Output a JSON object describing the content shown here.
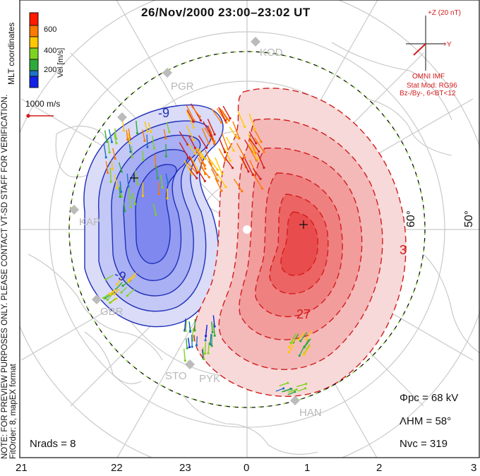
{
  "title": "26/Nov/2000 23:00–23:02 UT",
  "colorbar": {
    "label": "Vel [m/s]",
    "ticks": [
      "600",
      "400",
      "200"
    ],
    "colors": [
      "#ff1a00",
      "#ff7a00",
      "#ffc800",
      "#7ed321",
      "#2eaa3a",
      "#1c74c8",
      "#1020e8"
    ]
  },
  "coordinates_label": "MLT coordinates",
  "reference_vector": "1000 m/s",
  "preview_note_1": "NOTE: FOR PREVIEW PURPOSES ONLY. PLEASE CONTACT VT-SD STAFF FOR VERIFICATION.",
  "preview_note_2": "FitOrder: 8, mapEX format",
  "imf": {
    "z_label": "+Z (20 nT)",
    "y_label": "+Y",
    "source": "OMNI IMF",
    "model_line1": "Stat Mod: RG96",
    "model_line2": "Bz-/By-, 6<BT<12"
  },
  "stats": {
    "phi_pc": "Φpc = 68 kV",
    "lambda_hm": "ΛHM = 58°",
    "n_vc": "Nvc = 319",
    "n_rads": "Nrads = 8"
  },
  "contour_labels": {
    "neg_top": "-9",
    "neg_bottom": "-9",
    "pos_right": "3",
    "pos_bottom": "27"
  },
  "sites": [
    "KOD",
    "PGR",
    "KAP",
    "GBR",
    "STO",
    "PYK",
    "HAN"
  ],
  "latitudes": [
    "60°",
    "50°"
  ],
  "mlt_ticks": [
    "21",
    "22",
    "23",
    "0",
    "1",
    "2",
    "3"
  ],
  "colors": {
    "negative_cell": "#5b6cf0",
    "positive_cell": "#f24b4b",
    "hm_boundary": "#7ed321"
  }
}
